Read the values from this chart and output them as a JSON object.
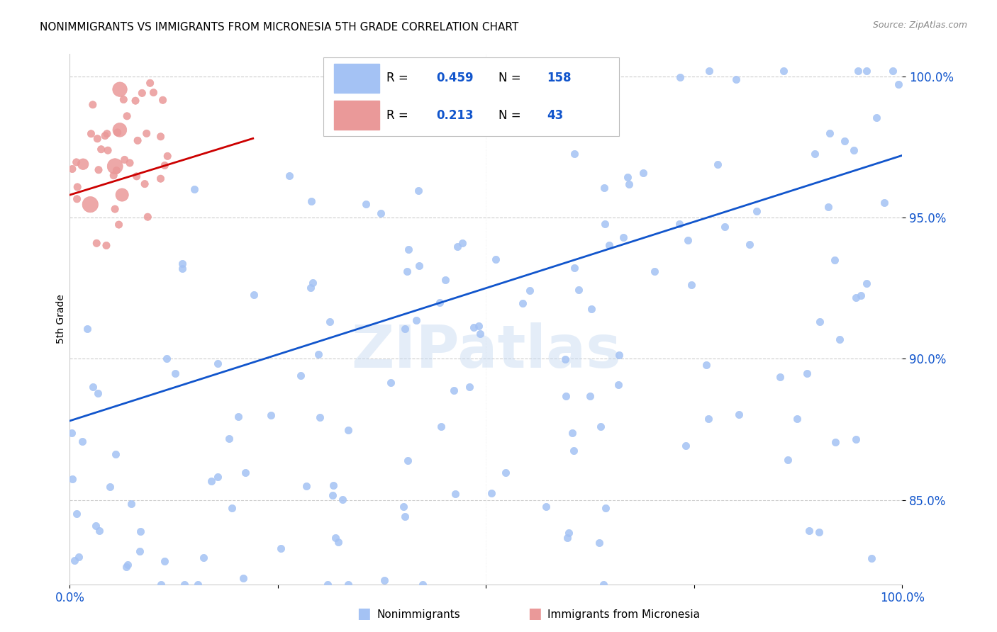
{
  "title": "NONIMMIGRANTS VS IMMIGRANTS FROM MICRONESIA 5TH GRADE CORRELATION CHART",
  "source": "Source: ZipAtlas.com",
  "ylabel": "5th Grade",
  "blue_R": 0.459,
  "blue_N": 158,
  "pink_R": 0.213,
  "pink_N": 43,
  "blue_color": "#a4c2f4",
  "pink_color": "#ea9999",
  "blue_line_color": "#1155cc",
  "pink_line_color": "#cc0000",
  "watermark": "ZIPatlas",
  "ytick_values": [
    0.85,
    0.9,
    0.95,
    1.0
  ],
  "ytick_labels": [
    "85.0%",
    "90.0%",
    "95.0%",
    "100.0%"
  ],
  "ymin": 0.82,
  "ymax": 1.008,
  "xmin": 0.0,
  "xmax": 1.0,
  "background_color": "#ffffff",
  "grid_color": "#cccccc",
  "title_color": "#000000",
  "axis_label_color": "#1155cc",
  "blue_seed": 12,
  "pink_seed": 7,
  "marker_size": 55,
  "pink_marker_size_base": 55,
  "blue_trend_x0": 0.0,
  "blue_trend_y0": 0.878,
  "blue_trend_x1": 1.0,
  "blue_trend_y1": 0.972,
  "pink_trend_x0": 0.0,
  "pink_trend_y0": 0.958,
  "pink_trend_x1": 0.22,
  "pink_trend_y1": 0.978
}
